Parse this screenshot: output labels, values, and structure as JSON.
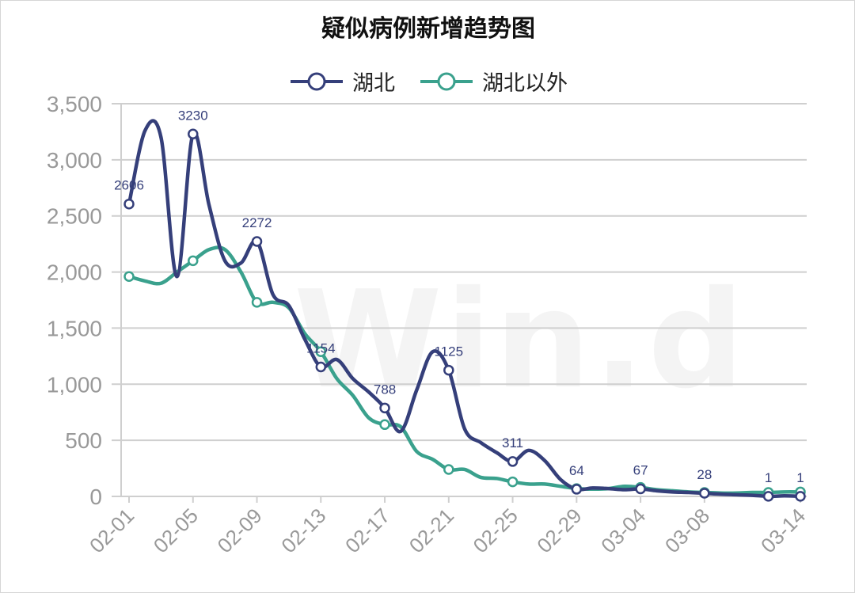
{
  "chart_data": {
    "type": "line",
    "title": "疑似病例新增趋势图",
    "watermark": "Win.d",
    "legend": {
      "position": "top-center"
    },
    "grid": true,
    "ylim": [
      0,
      3500
    ],
    "yticks": [
      0,
      500,
      1000,
      1500,
      2000,
      2500,
      3000,
      3500
    ],
    "ytick_labels": [
      "0",
      "500",
      "1,000",
      "1,500",
      "2,000",
      "2,500",
      "3,000",
      "3,500"
    ],
    "x": [
      "02-01",
      "02-02",
      "02-03",
      "02-04",
      "02-05",
      "02-06",
      "02-07",
      "02-08",
      "02-09",
      "02-10",
      "02-11",
      "02-12",
      "02-13",
      "02-14",
      "02-15",
      "02-16",
      "02-17",
      "02-18",
      "02-19",
      "02-20",
      "02-21",
      "02-22",
      "02-23",
      "02-24",
      "02-25",
      "02-26",
      "02-27",
      "02-28",
      "02-29",
      "03-01",
      "03-02",
      "03-03",
      "03-04",
      "03-05",
      "03-06",
      "03-07",
      "03-08",
      "03-09",
      "03-10",
      "03-11",
      "03-12",
      "03-13",
      "03-14"
    ],
    "xtick_labels": [
      "02-01",
      "02-05",
      "02-09",
      "02-13",
      "02-17",
      "02-21",
      "02-25",
      "02-29",
      "03-04",
      "03-08",
      "03-14"
    ],
    "xtick_index": [
      0,
      4,
      8,
      12,
      16,
      20,
      24,
      28,
      32,
      36,
      42
    ],
    "series": [
      {
        "name": "湖北",
        "color": "#353f7a",
        "values": [
          2606,
          3260,
          3200,
          1960,
          3230,
          2600,
          2100,
          2080,
          2272,
          1800,
          1700,
          1400,
          1154,
          1220,
          1050,
          930,
          788,
          580,
          950,
          1290,
          1125,
          600,
          480,
          390,
          311,
          410,
          320,
          150,
          64,
          75,
          70,
          60,
          67,
          50,
          40,
          35,
          28,
          20,
          15,
          10,
          1,
          5,
          1
        ],
        "labels": [
          {
            "i": 0,
            "text": "2606"
          },
          {
            "i": 4,
            "text": "3230"
          },
          {
            "i": 8,
            "text": "2272"
          },
          {
            "i": 12,
            "text": "1154"
          },
          {
            "i": 16,
            "text": "788"
          },
          {
            "i": 20,
            "text": "1125"
          },
          {
            "i": 24,
            "text": "311"
          },
          {
            "i": 28,
            "text": "64"
          },
          {
            "i": 32,
            "text": "67"
          },
          {
            "i": 36,
            "text": "28"
          },
          {
            "i": 40,
            "text": "1"
          },
          {
            "i": 42,
            "text": "1"
          }
        ],
        "markers": [
          0,
          4,
          8,
          12,
          16,
          20,
          24,
          28,
          32,
          36,
          40,
          42
        ]
      },
      {
        "name": "湖北以外",
        "color": "#3aa18d",
        "values": [
          1960,
          1920,
          1900,
          2000,
          2100,
          2200,
          2200,
          2000,
          1730,
          1730,
          1680,
          1450,
          1290,
          1050,
          900,
          700,
          640,
          620,
          400,
          330,
          240,
          240,
          170,
          160,
          130,
          110,
          110,
          90,
          70,
          65,
          70,
          90,
          80,
          60,
          50,
          40,
          35,
          30,
          30,
          35,
          35,
          40,
          40
        ],
        "markers": [
          0,
          4,
          8,
          12,
          16,
          20,
          24,
          28,
          32,
          36,
          40,
          42
        ]
      }
    ]
  }
}
